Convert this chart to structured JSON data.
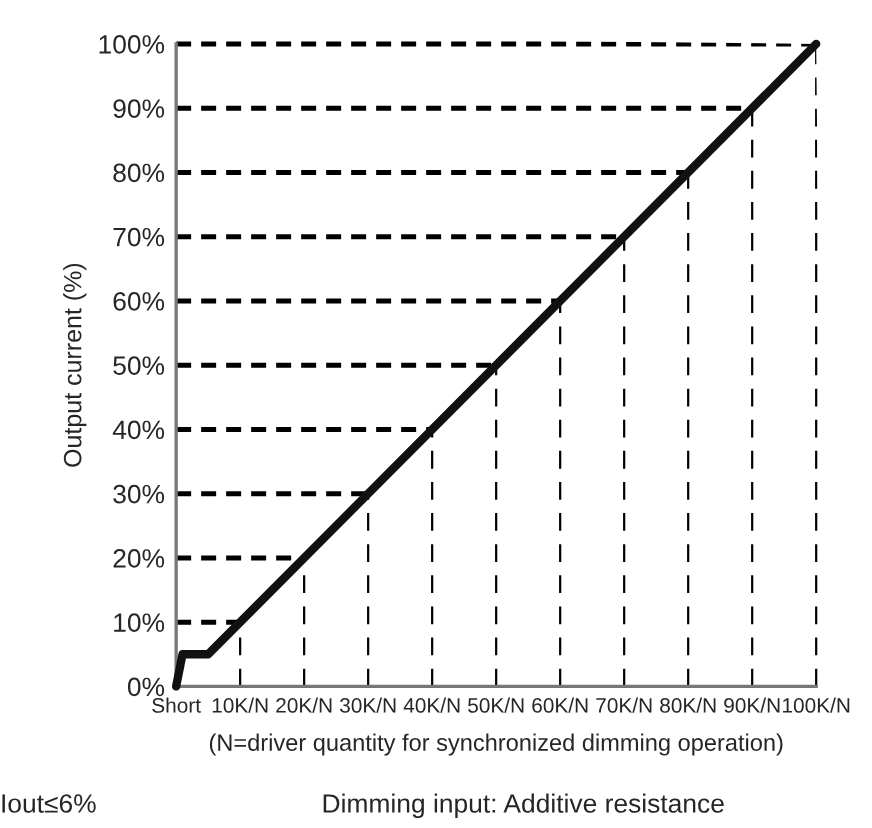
{
  "chart_data": {
    "type": "line",
    "xlabel": "(N=driver quantity for synchronized dimming operation)",
    "ylabel": "Output current (%)",
    "annotations": [
      "Dimming input: Additive resistance",
      "Iout≤6%"
    ],
    "x": [
      0,
      1,
      5,
      100
    ],
    "series": [
      {
        "color": "#111111",
        "values": [
          0,
          5,
          5,
          100
        ]
      }
    ],
    "xlim": [
      0,
      100
    ],
    "ylim": [
      0,
      100
    ],
    "xticks": [
      {
        "value": 0,
        "label": "Short"
      },
      {
        "value": 10,
        "label": "10K/N"
      },
      {
        "value": 20,
        "label": "20K/N"
      },
      {
        "value": 30,
        "label": "30K/N"
      },
      {
        "value": 40,
        "label": "40K/N"
      },
      {
        "value": 50,
        "label": "50K/N"
      },
      {
        "value": 60,
        "label": "60K/N"
      },
      {
        "value": 70,
        "label": "70K/N"
      },
      {
        "value": 80,
        "label": "80K/N"
      },
      {
        "value": 90,
        "label": "90K/N"
      },
      {
        "value": 100,
        "label": "100K/N"
      }
    ],
    "yticks": [
      {
        "value": 0,
        "label": "0%"
      },
      {
        "value": 10,
        "label": "10%"
      },
      {
        "value": 20,
        "label": "20%"
      },
      {
        "value": 30,
        "label": "30%"
      },
      {
        "value": 40,
        "label": "40%"
      },
      {
        "value": 50,
        "label": "50%"
      },
      {
        "value": 60,
        "label": "60%"
      },
      {
        "value": 70,
        "label": "70%"
      },
      {
        "value": 80,
        "label": "80%"
      },
      {
        "value": 90,
        "label": "90%"
      },
      {
        "value": 100,
        "label": "100%"
      }
    ],
    "grid": true,
    "marker": "none",
    "line_style": "solid"
  }
}
